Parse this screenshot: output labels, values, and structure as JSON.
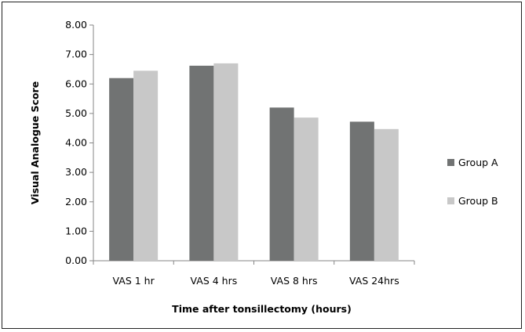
{
  "chart_data": {
    "type": "bar",
    "title": "",
    "xlabel": "Time after tonsillectomy  (hours)",
    "ylabel": "Visual Analogue Score",
    "ylim": [
      0,
      8
    ],
    "yticks": [
      "0.00",
      "1.00",
      "2.00",
      "3.00",
      "4.00",
      "5.00",
      "6.00",
      "7.00",
      "8.00"
    ],
    "categories": [
      "VAS 1 hr",
      "VAS 4 hrs",
      "VAS 8 hrs",
      "VAS 24hrs"
    ],
    "series": [
      {
        "name": "Group A",
        "values": [
          6.2,
          6.62,
          5.2,
          4.72
        ],
        "color": "#717373"
      },
      {
        "name": "Group B",
        "values": [
          6.45,
          6.7,
          4.86,
          4.47
        ],
        "color": "#c8c8c8"
      }
    ],
    "grid": false,
    "legend": "right"
  }
}
